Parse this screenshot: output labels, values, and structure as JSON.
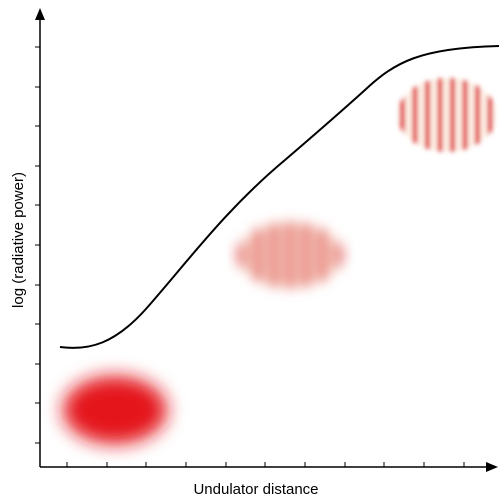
{
  "x_axis_label": "Undulator distance",
  "y_axis_label": "log (radiative power)"
}
